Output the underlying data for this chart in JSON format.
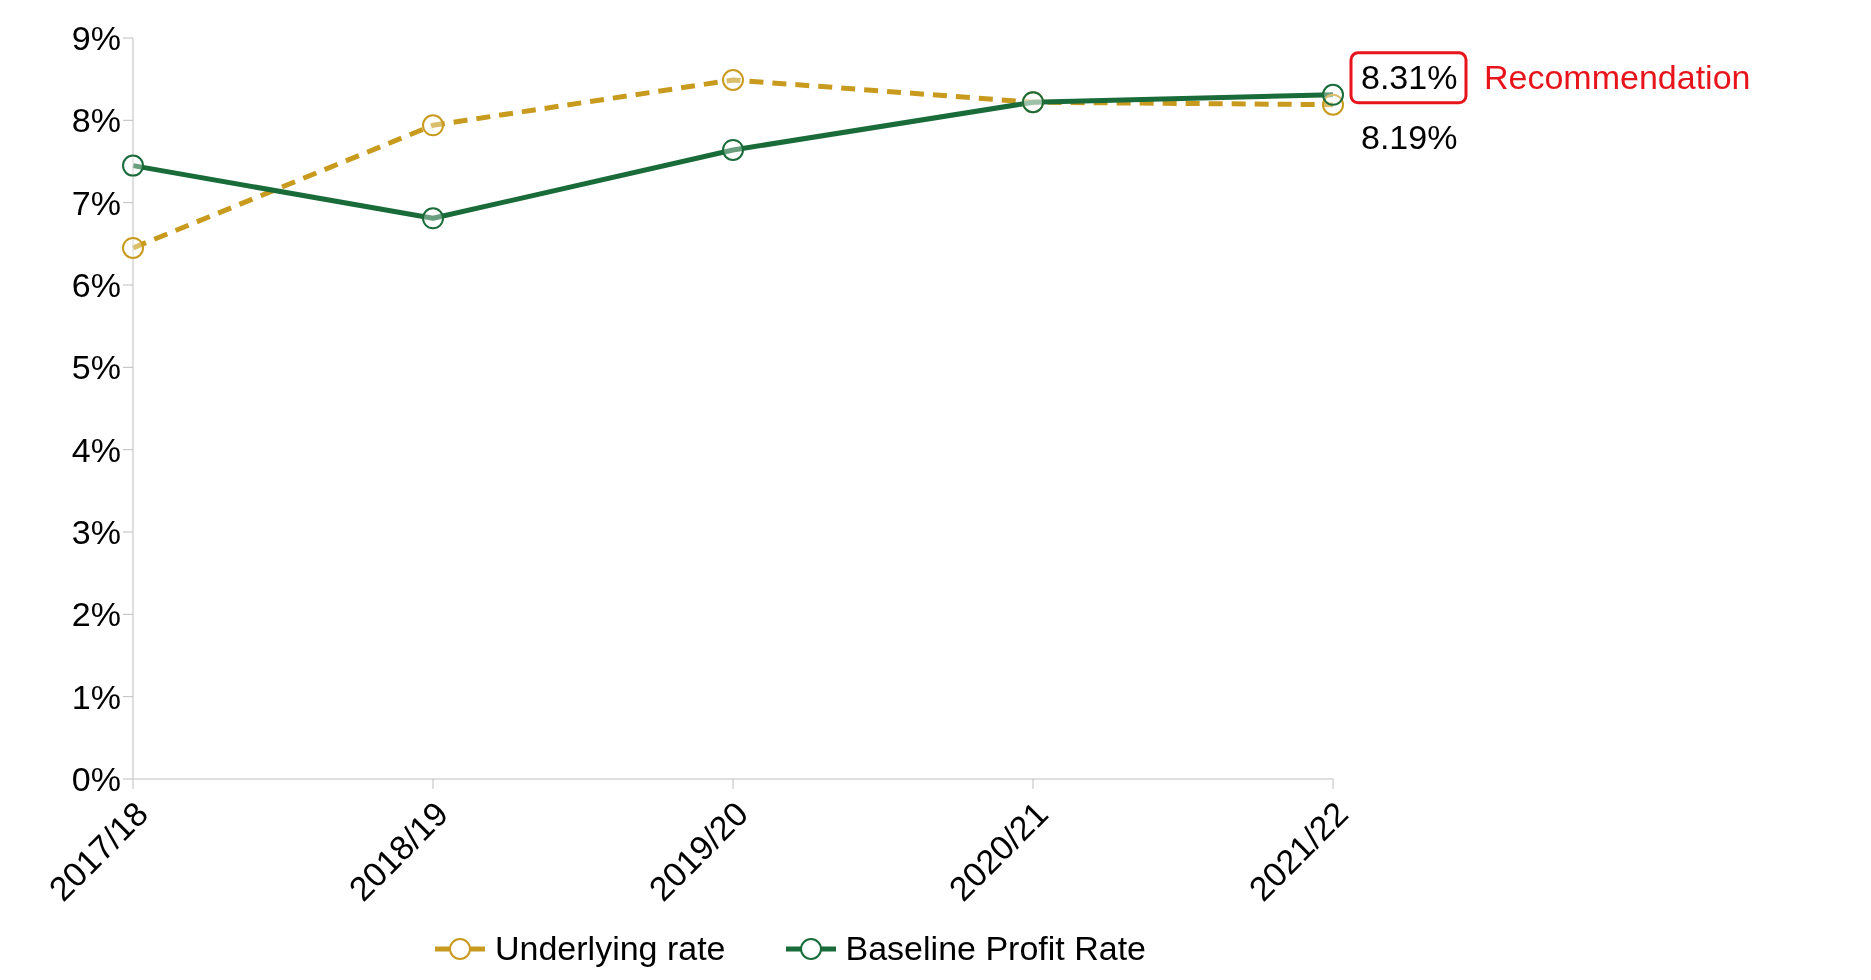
{
  "chart_data": {
    "type": "line",
    "categories": [
      "2017/18",
      "2018/19",
      "2019/20",
      "2020/21",
      "2021/22"
    ],
    "series": [
      {
        "name": "Underlying rate",
        "color": "#c89b1e",
        "line_style": "dashed",
        "values": [
          6.45,
          7.94,
          8.49,
          8.22,
          8.19
        ],
        "value_labels": [
          null,
          null,
          null,
          null,
          "8.19%"
        ]
      },
      {
        "name": "Baseline Profit Rate",
        "color": "#1a6b3a",
        "line_style": "solid",
        "values": [
          7.45,
          6.81,
          7.64,
          8.22,
          8.31
        ],
        "value_labels": [
          null,
          null,
          null,
          null,
          "8.31%"
        ]
      }
    ],
    "ylim": [
      0,
      9
    ],
    "yticks": [
      {
        "value": 0,
        "label": "0%"
      },
      {
        "value": 1,
        "label": "1%"
      },
      {
        "value": 2,
        "label": "2%"
      },
      {
        "value": 3,
        "label": "3%"
      },
      {
        "value": 4,
        "label": "4%"
      },
      {
        "value": 5,
        "label": "5%"
      },
      {
        "value": 6,
        "label": "6%"
      },
      {
        "value": 7,
        "label": "7%"
      },
      {
        "value": 8,
        "label": "8%"
      },
      {
        "value": 9,
        "label": "9%"
      }
    ],
    "annotations": [
      "Recommendation"
    ],
    "marker": "circle",
    "grid": false,
    "legend": "bottom"
  }
}
